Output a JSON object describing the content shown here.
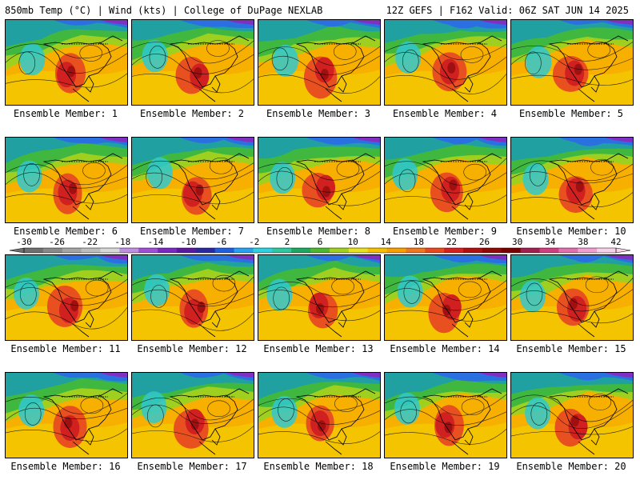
{
  "header": {
    "left": "850mb Temp (°C) | Wind (kts) | College of DuPage NEXLAB",
    "right": "12Z GEFS | F162 Valid: 06Z SAT JUN 14 2025"
  },
  "label_prefix": "Ensemble Member: ",
  "members": [
    "1",
    "2",
    "3",
    "4",
    "5",
    "6",
    "7",
    "8",
    "9",
    "10",
    "11",
    "12",
    "13",
    "14",
    "15",
    "16",
    "17",
    "18",
    "19",
    "20"
  ],
  "colorbar": {
    "ticks": [
      "-30",
      "-26",
      "-22",
      "-18",
      "-14",
      "-10",
      "-6",
      "-2",
      "2",
      "6",
      "10",
      "14",
      "18",
      "22",
      "26",
      "30",
      "34",
      "38",
      "42"
    ],
    "colors": [
      "#707070",
      "#8a8a8a",
      "#a5a5a5",
      "#bdbdbd",
      "#d8d8d8",
      "#c090e0",
      "#a050d8",
      "#7a2ac0",
      "#5a1aa0",
      "#2a2aa0",
      "#2060e0",
      "#2aa0f0",
      "#30d0e0",
      "#30c8a0",
      "#20a860",
      "#50b830",
      "#a0d020",
      "#e8e020",
      "#f6c000",
      "#f8a000",
      "#f07820",
      "#e84a20",
      "#d82020",
      "#b01010",
      "#900808",
      "#780000",
      "#a02050",
      "#d04080",
      "#e070b0",
      "#f0a0d0",
      "#f8d0e8"
    ]
  }
}
